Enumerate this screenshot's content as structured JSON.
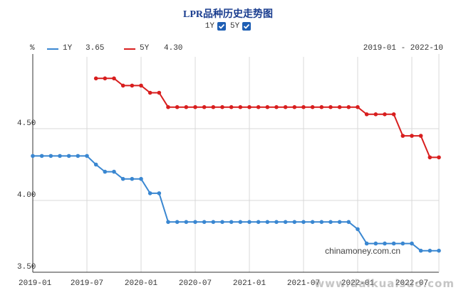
{
  "title": "LPR品种历史走势图",
  "toggles": [
    {
      "label": "1Y",
      "checked": true
    },
    {
      "label": "5Y",
      "checked": true
    }
  ],
  "legend": {
    "unit": "%",
    "s1_name": "1Y",
    "s1_value": "3.65",
    "s2_name": "5Y",
    "s2_value": "4.30",
    "range": "2019-01 - 2022-10"
  },
  "watermark": "chinamoney.com.cn",
  "site_mark": "www.daikuaisuo.com",
  "chart_data": {
    "type": "line",
    "ylim": [
      3.5,
      5.0
    ],
    "yticks": [
      "3.50",
      "4.00",
      "4.50"
    ],
    "xticks": [
      "2019-01",
      "2019-07",
      "2020-01",
      "2020-07",
      "2021-01",
      "2021-07",
      "2022-01",
      "2022-07"
    ],
    "x": [
      "2019-01",
      "2019-02",
      "2019-03",
      "2019-04",
      "2019-05",
      "2019-06",
      "2019-07",
      "2019-08",
      "2019-09",
      "2019-10",
      "2019-11",
      "2019-12",
      "2020-01",
      "2020-02",
      "2020-03",
      "2020-04",
      "2020-05",
      "2020-06",
      "2020-07",
      "2020-08",
      "2020-09",
      "2020-10",
      "2020-11",
      "2020-12",
      "2021-01",
      "2021-02",
      "2021-03",
      "2021-04",
      "2021-05",
      "2021-06",
      "2021-07",
      "2021-08",
      "2021-09",
      "2021-10",
      "2021-11",
      "2021-12",
      "2022-01",
      "2022-02",
      "2022-03",
      "2022-04",
      "2022-05",
      "2022-06",
      "2022-07",
      "2022-08",
      "2022-09",
      "2022-10"
    ],
    "series": [
      {
        "name": "1Y",
        "color": "#3a87d1",
        "values": [
          4.31,
          4.31,
          4.31,
          4.31,
          4.31,
          4.31,
          4.31,
          4.25,
          4.2,
          4.2,
          4.15,
          4.15,
          4.15,
          4.05,
          4.05,
          3.85,
          3.85,
          3.85,
          3.85,
          3.85,
          3.85,
          3.85,
          3.85,
          3.85,
          3.85,
          3.85,
          3.85,
          3.85,
          3.85,
          3.85,
          3.85,
          3.85,
          3.85,
          3.85,
          3.85,
          3.85,
          3.8,
          3.7,
          3.7,
          3.7,
          3.7,
          3.7,
          3.7,
          3.65,
          3.65,
          3.65
        ]
      },
      {
        "name": "5Y",
        "color": "#d81e1e",
        "values": [
          null,
          null,
          null,
          null,
          null,
          null,
          null,
          4.85,
          4.85,
          4.85,
          4.8,
          4.8,
          4.8,
          4.75,
          4.75,
          4.65,
          4.65,
          4.65,
          4.65,
          4.65,
          4.65,
          4.65,
          4.65,
          4.65,
          4.65,
          4.65,
          4.65,
          4.65,
          4.65,
          4.65,
          4.65,
          4.65,
          4.65,
          4.65,
          4.65,
          4.65,
          4.65,
          4.6,
          4.6,
          4.6,
          4.6,
          4.45,
          4.45,
          4.45,
          4.3,
          4.3
        ]
      }
    ]
  }
}
